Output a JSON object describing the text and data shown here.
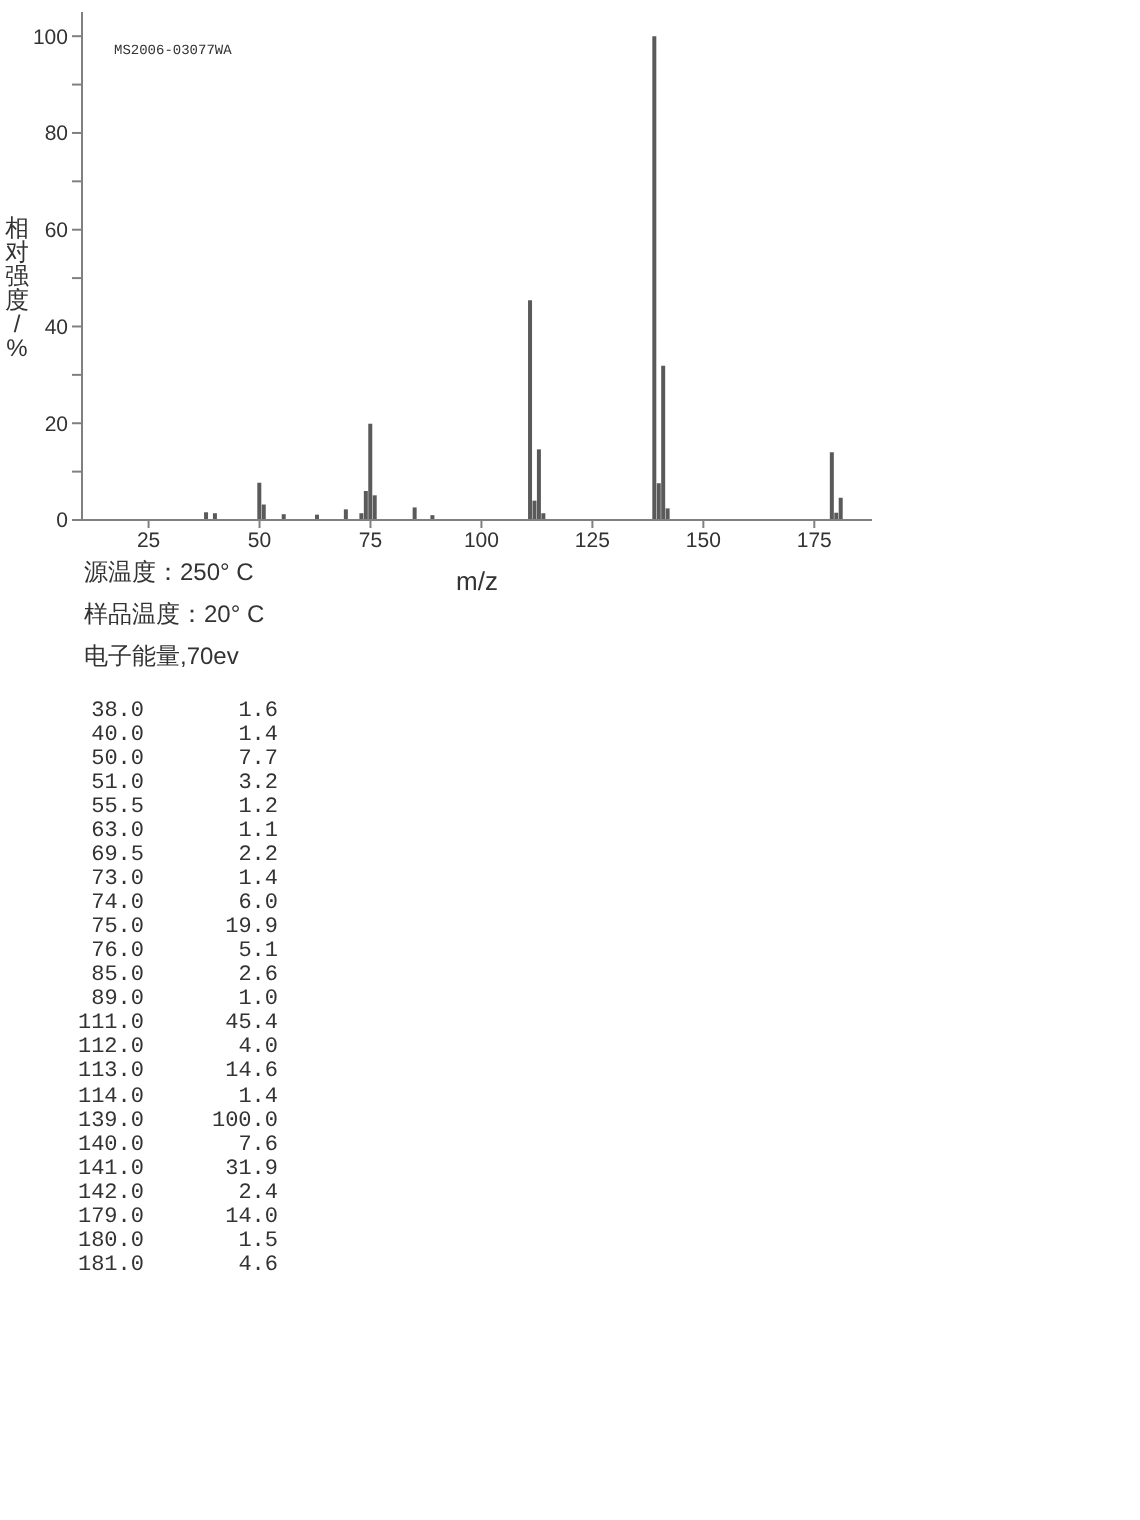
{
  "chart_data": [
    {
      "type": "bar",
      "xlabel": "m/z",
      "ylabel": "相对强度/%",
      "annotations": [
        "MS2006-03077WA",
        "源温度：250° C",
        "样品温度：20° C",
        "电子能量,70ev"
      ],
      "x": [
        38.0,
        40.0,
        50.0,
        51.0,
        55.5,
        63.0,
        69.5,
        73.0,
        74.0,
        75.0,
        76.0,
        85.0,
        89.0,
        111.0,
        112.0,
        113.0,
        114.0,
        139.0,
        140.0,
        141.0,
        142.0,
        179.0,
        180.0,
        181.0
      ],
      "values": [
        1.6,
        1.4,
        7.7,
        3.2,
        1.2,
        1.1,
        2.2,
        1.4,
        6.0,
        19.9,
        5.1,
        2.6,
        1.0,
        45.4,
        4.0,
        14.6,
        1.4,
        100.0,
        7.6,
        31.9,
        2.4,
        14.0,
        1.5,
        4.6
      ],
      "color": "#5a5a5a",
      "xlim": [
        10,
        188
      ],
      "xticks": [
        25,
        50,
        75,
        100,
        125,
        150,
        175
      ],
      "ylim": [
        0,
        105
      ],
      "yticks": [
        0,
        {
          "value": 10,
          "label": null
        },
        20,
        {
          "value": 30,
          "label": null
        },
        40,
        {
          "value": 50,
          "label": null
        },
        60,
        {
          "value": 70,
          "label": null
        },
        80,
        {
          "value": 90,
          "label": null
        },
        100
      ]
    },
    {
      "type": "other",
      "annotations": [
        "38.0",
        "1.6",
        "40.0",
        "1.4",
        "50.0",
        "7.7",
        "51.0",
        "3.2",
        "55.5",
        "1.2",
        "63.0",
        "1.1",
        "69.5",
        "2.2",
        "73.0",
        "1.4",
        "74.0",
        "6.0",
        "75.0",
        "19.9",
        "76.0",
        "5.1",
        "85.0",
        "2.6",
        "89.0",
        "1.0",
        "111.0",
        "45.4",
        "112.0",
        "4.0",
        "113.0",
        "14.6",
        "114.0",
        "1.4",
        "139.0",
        "100.0",
        "140.0",
        "7.6",
        "141.0",
        "31.9",
        "142.0",
        "2.4",
        "179.0",
        "14.0",
        "180.0",
        "1.5",
        "181.0",
        "4.6"
      ]
    }
  ]
}
